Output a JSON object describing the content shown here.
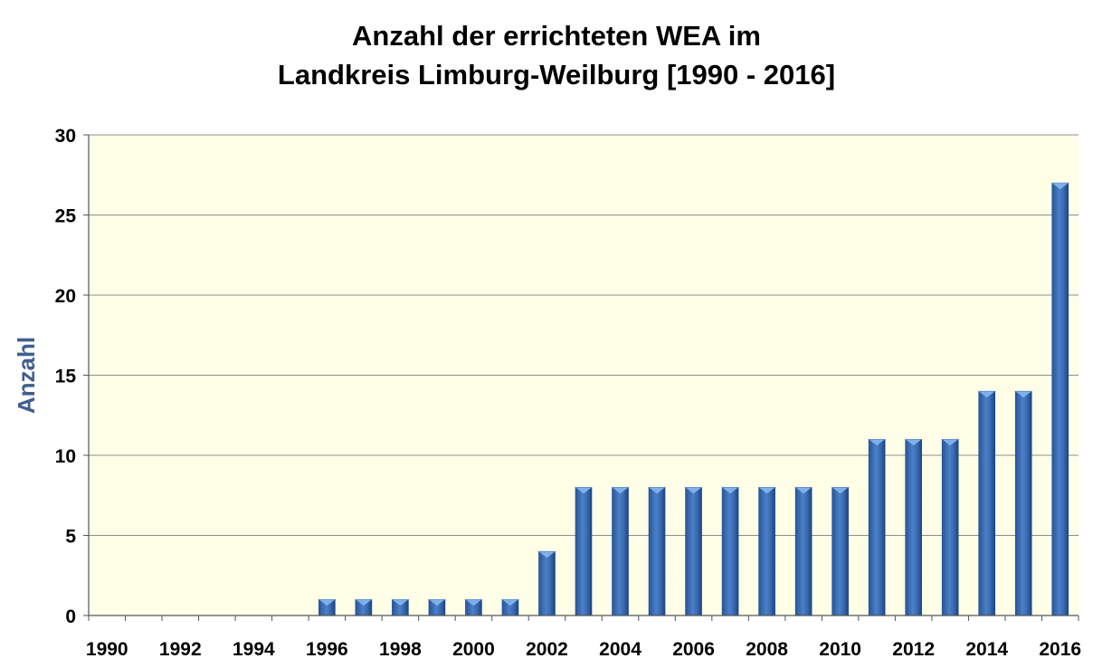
{
  "chart_data": {
    "type": "bar",
    "title_line1": "Anzahl der errichteten WEA im",
    "title_line2": "Landkreis Limburg-Weilburg [1990 - 2016]",
    "ylabel": "Anzahl",
    "xlabel": "",
    "ylim": [
      0,
      30
    ],
    "yticks": [
      0,
      5,
      10,
      15,
      20,
      25,
      30
    ],
    "grid": true,
    "categories": [
      1990,
      1991,
      1992,
      1993,
      1994,
      1995,
      1996,
      1997,
      1998,
      1999,
      2000,
      2001,
      2002,
      2003,
      2004,
      2005,
      2006,
      2007,
      2008,
      2009,
      2010,
      2011,
      2012,
      2013,
      2014,
      2015,
      2016
    ],
    "xtick_labels": [
      "1990",
      "1992",
      "1994",
      "1996",
      "1998",
      "2000",
      "2002",
      "2004",
      "2006",
      "2008",
      "2010",
      "2012",
      "2014",
      "2016"
    ],
    "values": [
      0,
      0,
      0,
      0,
      0,
      0,
      1,
      1,
      1,
      1,
      1,
      1,
      4,
      8,
      8,
      8,
      8,
      8,
      8,
      8,
      8,
      11,
      11,
      11,
      14,
      14,
      27
    ],
    "colors": {
      "bar": "#3d6fb5",
      "bar_dark": "#1f4a88",
      "bar_light": "#7fb0ea",
      "plot_bg": "#ffffe8",
      "grid": "#8c8c8c"
    }
  }
}
